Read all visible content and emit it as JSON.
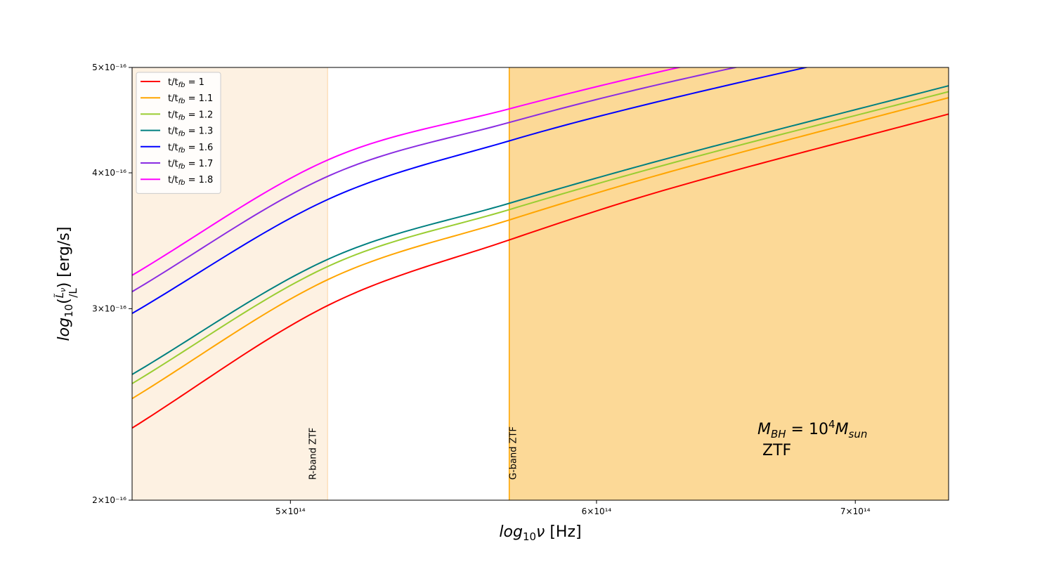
{
  "chart_data": {
    "type": "line",
    "xlabel": "log10ν [Hz]",
    "ylabel": "log10(L̃ν/L) [erg/s]",
    "x_scale": "log",
    "y_scale": "log",
    "xlim": [
      455000000000000.0,
      740000000000000.0
    ],
    "ylim": [
      2e-16,
      5e-16
    ],
    "x_ticks": [
      {
        "value": 500000000000000.0,
        "label": "5×10¹⁴"
      },
      {
        "value": 600000000000000.0,
        "label": "6×10¹⁴"
      },
      {
        "value": 700000000000000.0,
        "label": "7×10¹⁴"
      }
    ],
    "y_ticks": [
      {
        "value": 2e-16,
        "label": "2×10⁻¹⁶"
      },
      {
        "value": 3e-16,
        "label": "3×10⁻¹⁶"
      },
      {
        "value": 4e-16,
        "label": "4×10⁻¹⁶"
      },
      {
        "value": 5e-16,
        "label": "5×10⁻¹⁶"
      }
    ],
    "x": [
      455000000000000.0,
      511200000000000.0,
      569600000000000.0,
      627000000000000.0,
      740000000000000.0
    ],
    "series": [
      {
        "name": "t/tfb = 1",
        "color": "#ff0000",
        "values": [
          2.33e-16,
          3.02e-16,
          3.47e-16,
          3.87e-16,
          4.53e-16
        ]
      },
      {
        "name": "t/tfb = 1.1",
        "color": "#ffa500",
        "values": [
          2.48e-16,
          3.19e-16,
          3.62e-16,
          4.01e-16,
          4.69e-16
        ]
      },
      {
        "name": "t/tfb = 1.2",
        "color": "#9acd32",
        "values": [
          2.56e-16,
          3.28e-16,
          3.7e-16,
          4.08e-16,
          4.75e-16
        ]
      },
      {
        "name": "t/tfb = 1.3",
        "color": "#008080",
        "values": [
          2.61e-16,
          3.33e-16,
          3.75e-16,
          4.13e-16,
          4.81e-16
        ]
      },
      {
        "name": "t/tfb = 1.6",
        "color": "#0000ff",
        "values": [
          2.97e-16,
          3.78e-16,
          4.28e-16,
          4.68e-16,
          5.35e-16
        ]
      },
      {
        "name": "t/tfb = 1.7",
        "color": "#8a2be2",
        "values": [
          3.11e-16,
          3.97e-16,
          4.45e-16,
          4.85e-16,
          5.5e-16
        ]
      },
      {
        "name": "t/tfb = 1.8",
        "color": "#ff00ff",
        "values": [
          3.22e-16,
          4.11e-16,
          4.58e-16,
          4.98e-16,
          5.65e-16
        ]
      }
    ],
    "legend": {
      "placement": "upper-left",
      "entries": [
        {
          "prefix": "t/t",
          "sub": "fb",
          "suffix": " = 1"
        },
        {
          "prefix": "t/t",
          "sub": "fb",
          "suffix": " = 1.1"
        },
        {
          "prefix": "t/t",
          "sub": "fb",
          "suffix": " = 1.2"
        },
        {
          "prefix": "t/t",
          "sub": "fb",
          "suffix": " = 1.3"
        },
        {
          "prefix": "t/t",
          "sub": "fb",
          "suffix": " = 1.6"
        },
        {
          "prefix": "t/t",
          "sub": "fb",
          "suffix": " = 1.7"
        },
        {
          "prefix": "t/t",
          "sub": "fb",
          "suffix": " = 1.8"
        }
      ]
    },
    "bands": [
      {
        "label": "R-band ZTF",
        "x_start": 455000000000000.0,
        "x_end": 511200000000000.0,
        "fill": "#fdf1e2",
        "edge": "#fde0bd"
      },
      {
        "label": "G-band ZTF",
        "x_start": 569600000000000.0,
        "x_end": 740000000000000.0,
        "fill": "#fcd997",
        "edge": "#ffa500"
      }
    ],
    "annotation": {
      "line1": {
        "m": "M",
        "msub": "BH",
        "eq": " = 10",
        "exp": "4",
        "m2": "M",
        "m2sub": "sun"
      },
      "line2": "ZTF"
    }
  }
}
